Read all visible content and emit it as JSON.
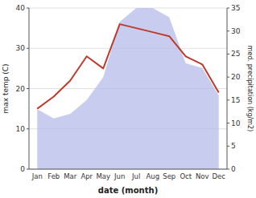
{
  "chart_data": {
    "type": "line",
    "categories": [
      "Jan",
      "Feb",
      "Mar",
      "Apr",
      "May",
      "Jun",
      "Jul",
      "Aug",
      "Sep",
      "Oct",
      "Nov",
      "Dec"
    ],
    "xlabel": "date (month)",
    "ylabel": "max temp (C)",
    "y2label": "med. precipitation (kg/m2)",
    "ylim": [
      0,
      40
    ],
    "yticks": [
      0,
      10,
      20,
      30,
      40
    ],
    "y2lim": [
      0,
      35
    ],
    "y2ticks": [
      0,
      5,
      10,
      15,
      20,
      25,
      30,
      35
    ],
    "grid": true,
    "series": [
      {
        "type": "area",
        "axis": "y2",
        "color": "#b0b8e8",
        "values": [
          13,
          11,
          12,
          15,
          20,
          32,
          35,
          35,
          33,
          23,
          22,
          16
        ]
      },
      {
        "type": "line",
        "color": "#c0392b",
        "values": [
          15,
          18,
          22,
          28,
          25,
          36,
          35,
          34,
          33,
          28,
          26,
          19
        ]
      }
    ]
  }
}
